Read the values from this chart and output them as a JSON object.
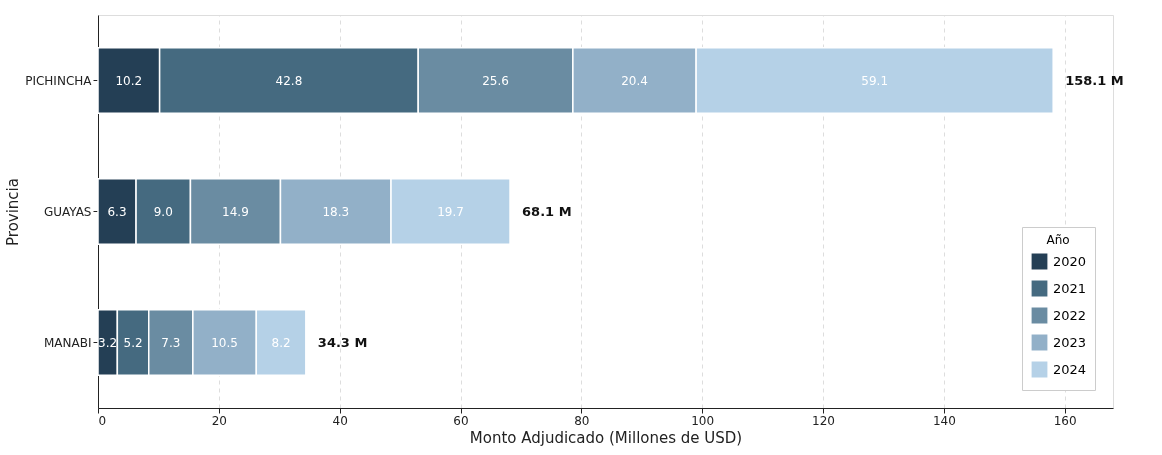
{
  "chart_data": {
    "type": "bar",
    "orientation": "horizontal",
    "stacked": true,
    "categories": [
      "PICHINCHA",
      "GUAYAS",
      "MANABI"
    ],
    "series": [
      {
        "name": "2020",
        "color": "#243f55",
        "values": [
          10.2,
          6.3,
          3.2
        ]
      },
      {
        "name": "2021",
        "color": "#456a80",
        "values": [
          42.8,
          9.0,
          5.2
        ]
      },
      {
        "name": "2022",
        "color": "#6a8ca2",
        "values": [
          25.6,
          14.9,
          7.3
        ]
      },
      {
        "name": "2023",
        "color": "#92b0c8",
        "values": [
          20.4,
          18.3,
          10.5
        ]
      },
      {
        "name": "2024",
        "color": "#b5d1e7",
        "values": [
          59.1,
          19.7,
          8.2
        ]
      }
    ],
    "value_labels": [
      [
        "10.2",
        "6.3",
        "3.2"
      ],
      [
        "42.8",
        "9.0",
        "5.2"
      ],
      [
        "25.6",
        "14.9",
        "7.3"
      ],
      [
        "20.4",
        "18.3",
        "10.5"
      ],
      [
        "59.1",
        "19.7",
        "8.2"
      ]
    ],
    "totals": [
      "158.1 M",
      "68.1 M",
      "34.3 M"
    ],
    "xlim": [
      0,
      168
    ],
    "xticks": [
      0,
      20,
      40,
      60,
      80,
      100,
      120,
      140,
      160
    ],
    "xlabel": "Monto Adjudicado (Millones de USD)",
    "ylabel": "Provincia",
    "legend_title": "Año",
    "legend": "bottom right",
    "grid": "x"
  }
}
